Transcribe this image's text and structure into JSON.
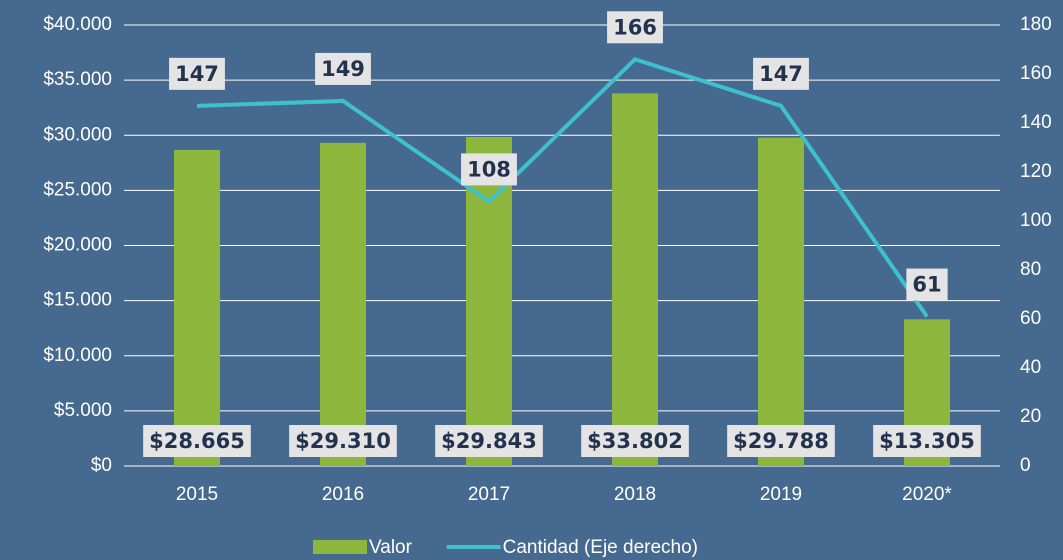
{
  "chart_data": {
    "type": "bar",
    "categories": [
      "2015",
      "2016",
      "2017",
      "2018",
      "2019",
      "2020*"
    ],
    "series": [
      {
        "name": "Valor",
        "type": "bar",
        "color": "#8db63c",
        "values": [
          28665,
          29310,
          29843,
          33802,
          29788,
          13305
        ],
        "value_labels": [
          "$28.665",
          "$29.310",
          "$29.843",
          "$33.802",
          "$29.788",
          "$13.305"
        ]
      },
      {
        "name": "Cantidad (Eje derecho)",
        "type": "line",
        "axis": "y2",
        "color": "#3ec1cf",
        "values": [
          147,
          149,
          108,
          166,
          147,
          61
        ]
      }
    ],
    "ylim": [
      0,
      40000
    ],
    "yticks": [
      {
        "value": 0,
        "label": "$0"
      },
      {
        "value": 5000,
        "label": "$5.000"
      },
      {
        "value": 10000,
        "label": "$10.000"
      },
      {
        "value": 15000,
        "label": "$15.000"
      },
      {
        "value": 20000,
        "label": "$20.000"
      },
      {
        "value": 25000,
        "label": "$25.000"
      },
      {
        "value": 30000,
        "label": "$30.000"
      },
      {
        "value": 35000,
        "label": "$35.000"
      },
      {
        "value": 40000,
        "label": "$40.000"
      }
    ],
    "y2lim": [
      0,
      180
    ],
    "y2ticks": [
      0,
      20,
      40,
      60,
      80,
      100,
      120,
      140,
      160,
      180
    ],
    "grid": true,
    "legend": "bottom"
  }
}
